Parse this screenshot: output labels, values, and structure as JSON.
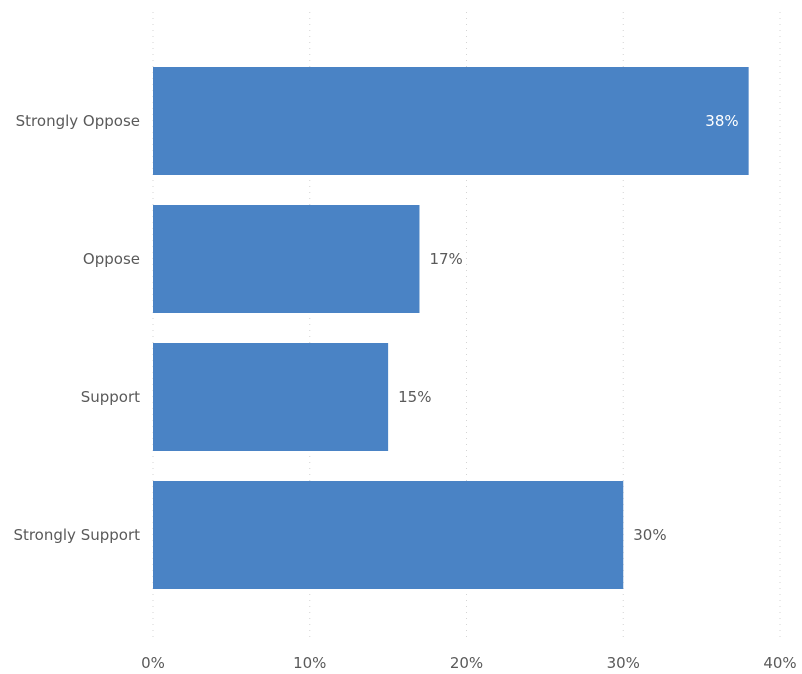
{
  "chart_data": {
    "type": "bar",
    "orientation": "horizontal",
    "title": "",
    "xlabel": "",
    "ylabel": "",
    "categories": [
      "Strongly Oppose",
      "Oppose",
      "Support",
      "Strongly Support"
    ],
    "values": [
      38,
      17,
      15,
      30
    ],
    "value_labels": [
      "38%",
      "17%",
      "15%",
      "30%"
    ],
    "xlim": [
      0,
      40
    ],
    "x_ticks": [
      0,
      10,
      20,
      30,
      40
    ],
    "x_tick_labels": [
      "0%",
      "10%",
      "20%",
      "30%",
      "40%"
    ],
    "grid": true,
    "legend": "none",
    "bar_color": "#4a83c5",
    "inside_label_color": "#ffffff",
    "outside_label_color": "#5a5a5a"
  }
}
